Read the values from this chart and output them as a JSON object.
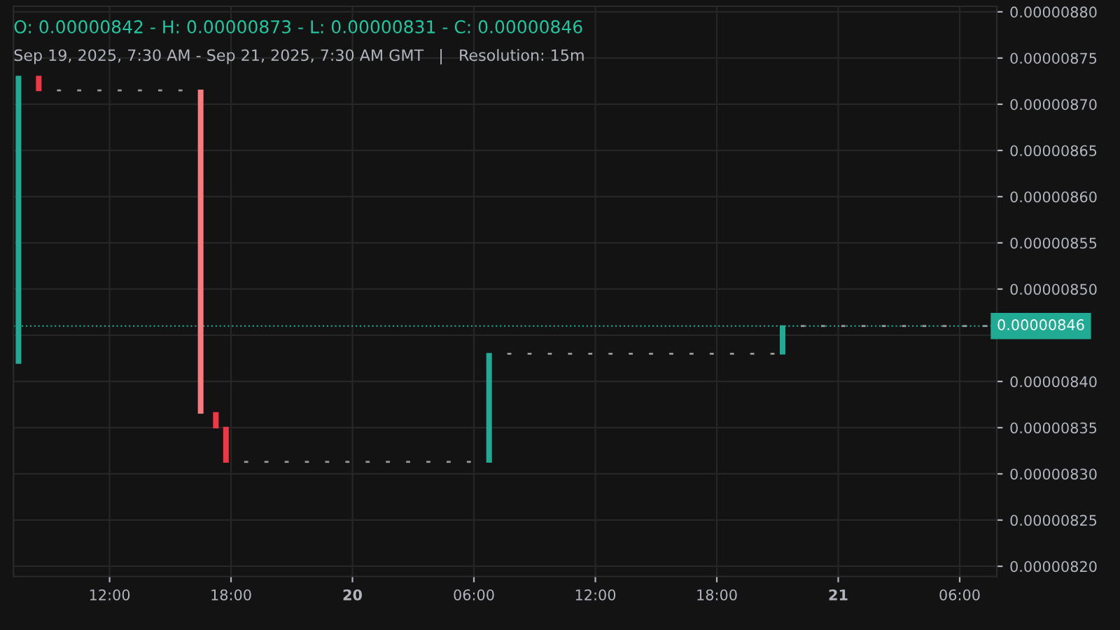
{
  "chart_data": {
    "type": "candlestick",
    "title": "O: 0.00000842 - H: 0.00000873 - L: 0.00000831 - C: 0.00000846",
    "subtitle": "Sep 19, 2025, 7:30 AM - Sep 21, 2025, 7:30 AM GMT   |   Resolution: 15m",
    "x": [
      "2025-09-19T07:30",
      "2025-09-19T08:30",
      "2025-09-19T09:30",
      "2025-09-19T10:30",
      "2025-09-19T11:30",
      "2025-09-19T12:30",
      "2025-09-19T13:30",
      "2025-09-19T14:30",
      "2025-09-19T15:30",
      "2025-09-19T16:30",
      "2025-09-19T17:15",
      "2025-09-19T17:45",
      "2025-09-19T18:45",
      "2025-09-19T19:45",
      "2025-09-19T20:45",
      "2025-09-19T21:45",
      "2025-09-19T22:45",
      "2025-09-19T23:45",
      "2025-09-20T00:45",
      "2025-09-20T01:45",
      "2025-09-20T02:45",
      "2025-09-20T03:45",
      "2025-09-20T04:45",
      "2025-09-20T05:45",
      "2025-09-20T06:45",
      "2025-09-20T07:45",
      "2025-09-20T08:45",
      "2025-09-20T09:45",
      "2025-09-20T10:45",
      "2025-09-20T11:45",
      "2025-09-20T12:45",
      "2025-09-20T13:45",
      "2025-09-20T14:45",
      "2025-09-20T15:45",
      "2025-09-20T16:45",
      "2025-09-20T17:45",
      "2025-09-20T18:45",
      "2025-09-20T19:45",
      "2025-09-20T20:45",
      "2025-09-20T21:15",
      "2025-09-20T22:15",
      "2025-09-20T23:15",
      "2025-09-21T00:15",
      "2025-09-21T01:15",
      "2025-09-21T02:15",
      "2025-09-21T03:15",
      "2025-09-21T04:15",
      "2025-09-21T05:15",
      "2025-09-21T06:15",
      "2025-09-21T07:15"
    ],
    "ohlc": [
      [
        8.42e-06,
        8.73e-06,
        8.42e-06,
        8.73e-06
      ],
      [
        8.73e-06,
        8.73e-06,
        8.715e-06,
        8.715e-06
      ],
      [
        8.715e-06,
        8.715e-06,
        8.715e-06,
        8.715e-06
      ],
      [
        8.715e-06,
        8.715e-06,
        8.715e-06,
        8.715e-06
      ],
      [
        8.715e-06,
        8.715e-06,
        8.715e-06,
        8.715e-06
      ],
      [
        8.715e-06,
        8.715e-06,
        8.715e-06,
        8.715e-06
      ],
      [
        8.715e-06,
        8.715e-06,
        8.715e-06,
        8.715e-06
      ],
      [
        8.715e-06,
        8.715e-06,
        8.715e-06,
        8.715e-06
      ],
      [
        8.715e-06,
        8.715e-06,
        8.715e-06,
        8.715e-06
      ],
      [
        8.715e-06,
        8.715e-06,
        8.366e-06,
        8.366e-06
      ],
      [
        8.366e-06,
        8.366e-06,
        8.35e-06,
        8.35e-06
      ],
      [
        8.35e-06,
        8.35e-06,
        8.313e-06,
        8.313e-06
      ],
      [
        8.313e-06,
        8.313e-06,
        8.313e-06,
        8.313e-06
      ],
      [
        8.313e-06,
        8.313e-06,
        8.313e-06,
        8.313e-06
      ],
      [
        8.313e-06,
        8.313e-06,
        8.313e-06,
        8.313e-06
      ],
      [
        8.313e-06,
        8.313e-06,
        8.313e-06,
        8.313e-06
      ],
      [
        8.313e-06,
        8.313e-06,
        8.313e-06,
        8.313e-06
      ],
      [
        8.313e-06,
        8.313e-06,
        8.313e-06,
        8.313e-06
      ],
      [
        8.313e-06,
        8.313e-06,
        8.313e-06,
        8.313e-06
      ],
      [
        8.313e-06,
        8.313e-06,
        8.313e-06,
        8.313e-06
      ],
      [
        8.313e-06,
        8.313e-06,
        8.313e-06,
        8.313e-06
      ],
      [
        8.313e-06,
        8.313e-06,
        8.313e-06,
        8.313e-06
      ],
      [
        8.313e-06,
        8.313e-06,
        8.313e-06,
        8.313e-06
      ],
      [
        8.313e-06,
        8.313e-06,
        8.313e-06,
        8.313e-06
      ],
      [
        8.313e-06,
        8.43e-06,
        8.313e-06,
        8.43e-06
      ],
      [
        8.43e-06,
        8.43e-06,
        8.43e-06,
        8.43e-06
      ],
      [
        8.43e-06,
        8.43e-06,
        8.43e-06,
        8.43e-06
      ],
      [
        8.43e-06,
        8.43e-06,
        8.43e-06,
        8.43e-06
      ],
      [
        8.43e-06,
        8.43e-06,
        8.43e-06,
        8.43e-06
      ],
      [
        8.43e-06,
        8.43e-06,
        8.43e-06,
        8.43e-06
      ],
      [
        8.43e-06,
        8.43e-06,
        8.43e-06,
        8.43e-06
      ],
      [
        8.43e-06,
        8.43e-06,
        8.43e-06,
        8.43e-06
      ],
      [
        8.43e-06,
        8.43e-06,
        8.43e-06,
        8.43e-06
      ],
      [
        8.43e-06,
        8.43e-06,
        8.43e-06,
        8.43e-06
      ],
      [
        8.43e-06,
        8.43e-06,
        8.43e-06,
        8.43e-06
      ],
      [
        8.43e-06,
        8.43e-06,
        8.43e-06,
        8.43e-06
      ],
      [
        8.43e-06,
        8.43e-06,
        8.43e-06,
        8.43e-06
      ],
      [
        8.43e-06,
        8.43e-06,
        8.43e-06,
        8.43e-06
      ],
      [
        8.43e-06,
        8.43e-06,
        8.43e-06,
        8.43e-06
      ],
      [
        8.43e-06,
        8.46e-06,
        8.43e-06,
        8.46e-06
      ],
      [
        8.46e-06,
        8.46e-06,
        8.46e-06,
        8.46e-06
      ],
      [
        8.46e-06,
        8.46e-06,
        8.46e-06,
        8.46e-06
      ],
      [
        8.46e-06,
        8.46e-06,
        8.46e-06,
        8.46e-06
      ],
      [
        8.46e-06,
        8.46e-06,
        8.46e-06,
        8.46e-06
      ],
      [
        8.46e-06,
        8.46e-06,
        8.46e-06,
        8.46e-06
      ],
      [
        8.46e-06,
        8.46e-06,
        8.46e-06,
        8.46e-06
      ],
      [
        8.46e-06,
        8.46e-06,
        8.46e-06,
        8.46e-06
      ],
      [
        8.46e-06,
        8.46e-06,
        8.46e-06,
        8.46e-06
      ],
      [
        8.46e-06,
        8.46e-06,
        8.46e-06,
        8.46e-06
      ],
      [
        8.46e-06,
        8.46e-06,
        8.46e-06,
        8.46e-06
      ]
    ],
    "colors": [
      "#22ab94",
      "#f23645",
      "#9a9a9a",
      "#9a9a9a",
      "#9a9a9a",
      "#9a9a9a",
      "#9a9a9a",
      "#9a9a9a",
      "#9a9a9a",
      "#f77c80",
      "#f23645",
      "#f23645",
      "#9a9a9a",
      "#9a9a9a",
      "#9a9a9a",
      "#9a9a9a",
      "#9a9a9a",
      "#9a9a9a",
      "#9a9a9a",
      "#9a9a9a",
      "#9a9a9a",
      "#9a9a9a",
      "#9a9a9a",
      "#9a9a9a",
      "#22ab94",
      "#9a9a9a",
      "#9a9a9a",
      "#9a9a9a",
      "#9a9a9a",
      "#9a9a9a",
      "#9a9a9a",
      "#9a9a9a",
      "#9a9a9a",
      "#9a9a9a",
      "#9a9a9a",
      "#9a9a9a",
      "#9a9a9a",
      "#9a9a9a",
      "#9a9a9a",
      "#22ab94",
      "#9a9a9a",
      "#9a9a9a",
      "#9a9a9a",
      "#9a9a9a",
      "#9a9a9a",
      "#9a9a9a",
      "#9a9a9a",
      "#9a9a9a",
      "#9a9a9a",
      "#9a9a9a"
    ],
    "xlim": [
      "2025-09-19T07:15",
      "2025-09-21T07:50"
    ],
    "xticks": [
      {
        "value": "2025-09-19T12:00",
        "label": "12:00"
      },
      {
        "value": "2025-09-19T18:00",
        "label": "18:00"
      },
      {
        "value": "2025-09-20T00:00",
        "label": "20"
      },
      {
        "value": "2025-09-20T06:00",
        "label": "06:00"
      },
      {
        "value": "2025-09-20T12:00",
        "label": "12:00"
      },
      {
        "value": "2025-09-20T18:00",
        "label": "18:00"
      },
      {
        "value": "2025-09-21T00:00",
        "label": "21"
      },
      {
        "value": "2025-09-21T06:00",
        "label": "06:00"
      }
    ],
    "ylim": [
      8.189e-06,
      8.806e-06
    ],
    "yticks": [
      {
        "value": 8.2e-06,
        "label": "0.00000820"
      },
      {
        "value": 8.25e-06,
        "label": "0.00000825"
      },
      {
        "value": 8.3e-06,
        "label": "0.00000830"
      },
      {
        "value": 8.35e-06,
        "label": "0.00000835"
      },
      {
        "value": 8.4e-06,
        "label": "0.00000840"
      },
      {
        "value": 8.45e-06,
        "label": null
      },
      {
        "value": 8.5e-06,
        "label": "0.00000850"
      },
      {
        "value": 8.55e-06,
        "label": "0.00000855"
      },
      {
        "value": 8.6e-06,
        "label": "0.00000860"
      },
      {
        "value": 8.65e-06,
        "label": "0.00000865"
      },
      {
        "value": 8.7e-06,
        "label": "0.00000870"
      },
      {
        "value": 8.75e-06,
        "label": "0.00000875"
      },
      {
        "value": 8.8e-06,
        "label": "0.00000880"
      }
    ],
    "ref_lines": [
      {
        "axis": "y",
        "value": 8.46e-06,
        "label": "0.00000846",
        "color": "#22ab94",
        "line_style": "dotted"
      }
    ],
    "grid": true
  }
}
